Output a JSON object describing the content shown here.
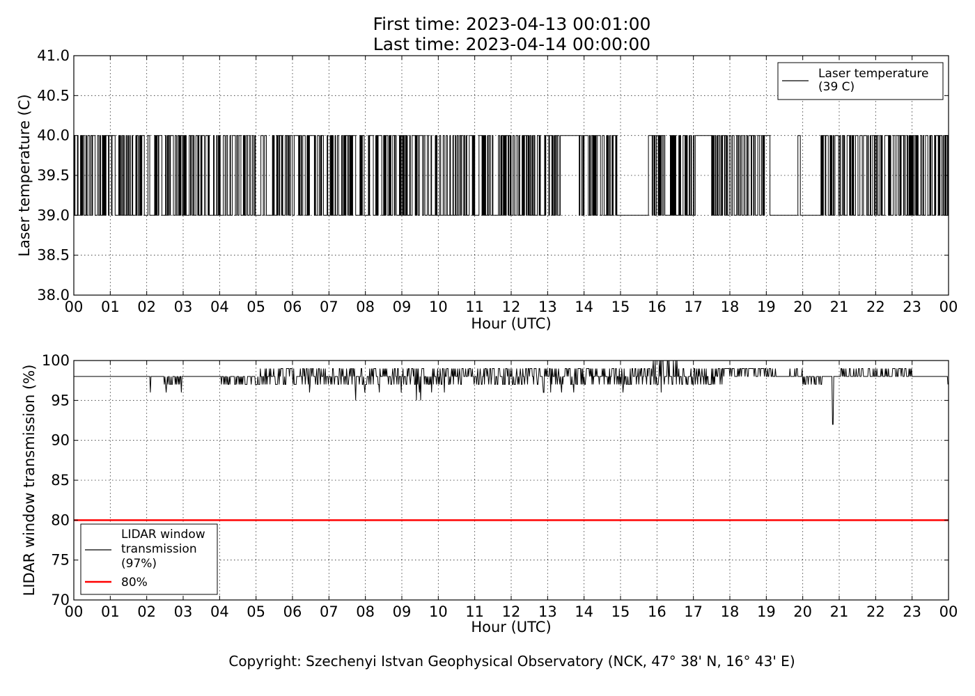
{
  "figure": {
    "title_line1": "First time: 2023-04-13 00:01:00",
    "title_line2": "Last time: 2023-04-14 00:00:00",
    "copyright": "Copyright: Szechenyi Istvan Geophysical Observatory (NCK, 47° 38' N, 16° 43' E)"
  },
  "chart_data": [
    {
      "type": "line",
      "xlabel": "Hour (UTC)",
      "ylabel": "Laser temperature (C)",
      "xlim": [
        0,
        24
      ],
      "ylim": [
        38.0,
        41.0
      ],
      "x_tick_labels": [
        "00",
        "01",
        "02",
        "03",
        "04",
        "05",
        "06",
        "07",
        "08",
        "09",
        "10",
        "11",
        "12",
        "13",
        "14",
        "15",
        "16",
        "17",
        "18",
        "19",
        "20",
        "21",
        "22",
        "23",
        "00"
      ],
      "y_tick_labels": [
        "38.0",
        "38.5",
        "39.0",
        "39.5",
        "40.0",
        "40.5",
        "41.0"
      ],
      "grid": true,
      "legend_position": "top-right",
      "legend": [
        {
          "label_line1": "Laser temperature",
          "label_line2": "(39 C)",
          "color": "#000000"
        }
      ],
      "series": [
        {
          "name": "Laser temperature (39 C)",
          "color": "#000000",
          "sampling_minutes": 1,
          "values_description": "one-minute samples alternating between 39.0 and 40.0",
          "runs": [
            {
              "start_h": 0.0,
              "end_h": 13.0,
              "pattern": "alternating",
              "low": 39.0,
              "high": 40.0,
              "density": 0.45
            },
            {
              "start_h": 13.0,
              "end_h": 13.35,
              "pattern": "alternating",
              "low": 39.0,
              "high": 40.0,
              "density": 0.55
            },
            {
              "start_h": 13.35,
              "end_h": 13.8,
              "pattern": "constant",
              "value": 40.0
            },
            {
              "start_h": 13.8,
              "end_h": 14.95,
              "pattern": "alternating",
              "low": 39.0,
              "high": 40.0,
              "density": 0.55
            },
            {
              "start_h": 14.95,
              "end_h": 15.75,
              "pattern": "constant",
              "value": 39.0
            },
            {
              "start_h": 15.75,
              "end_h": 17.1,
              "pattern": "alternating",
              "low": 39.0,
              "high": 40.0,
              "density": 0.45
            },
            {
              "start_h": 17.1,
              "end_h": 17.5,
              "pattern": "constant",
              "value": 40.0
            },
            {
              "start_h": 17.5,
              "end_h": 18.95,
              "pattern": "alternating",
              "low": 39.0,
              "high": 40.0,
              "density": 0.55
            },
            {
              "start_h": 18.95,
              "end_h": 19.1,
              "pattern": "constant",
              "value": 40.0
            },
            {
              "start_h": 19.1,
              "end_h": 19.85,
              "pattern": "constant",
              "value": 39.0
            },
            {
              "start_h": 19.85,
              "end_h": 19.95,
              "pattern": "alternating",
              "low": 39.0,
              "high": 40.0,
              "density": 0.6
            },
            {
              "start_h": 19.95,
              "end_h": 20.5,
              "pattern": "constant",
              "value": 39.0
            },
            {
              "start_h": 20.5,
              "end_h": 24.0,
              "pattern": "alternating",
              "low": 39.0,
              "high": 40.0,
              "density": 0.5
            }
          ]
        }
      ]
    },
    {
      "type": "line",
      "xlabel": "Hour (UTC)",
      "ylabel": "LIDAR window transmission (%)",
      "xlim": [
        0,
        24
      ],
      "ylim": [
        70,
        100
      ],
      "x_tick_labels": [
        "00",
        "01",
        "02",
        "03",
        "04",
        "05",
        "06",
        "07",
        "08",
        "09",
        "10",
        "11",
        "12",
        "13",
        "14",
        "15",
        "16",
        "17",
        "18",
        "19",
        "20",
        "21",
        "22",
        "23",
        "00"
      ],
      "y_tick_labels": [
        "70",
        "75",
        "80",
        "85",
        "90",
        "95",
        "100"
      ],
      "grid": true,
      "legend_position": "lower-left",
      "legend": [
        {
          "label_line1": "LIDAR window",
          "label_line2": "transmission",
          "label_line3": "(97%)",
          "color": "#000000"
        },
        {
          "label_line1": "80%",
          "color": "#ff0000"
        }
      ],
      "series": [
        {
          "name": "LIDAR window transmission (97%)",
          "color": "#000000",
          "baseline": 98,
          "segments": [
            {
              "start_h": 0.0,
              "end_h": 2.05,
              "noise": 0,
              "base": 98
            },
            {
              "start_h": 2.05,
              "end_h": 3.05,
              "noise": 1,
              "base": 98,
              "min": 96,
              "max": 98
            },
            {
              "start_h": 3.05,
              "end_h": 3.8,
              "noise": 0,
              "base": 98
            },
            {
              "start_h": 3.8,
              "end_h": 5.0,
              "noise": 1,
              "base": 98,
              "min": 97,
              "max": 98
            },
            {
              "start_h": 5.0,
              "end_h": 5.7,
              "noise": 1,
              "base": 98,
              "min": 97,
              "max": 99
            },
            {
              "start_h": 5.7,
              "end_h": 7.0,
              "noise": 1,
              "base": 98,
              "min": 96,
              "max": 99
            },
            {
              "start_h": 7.0,
              "end_h": 9.7,
              "noise": 1,
              "base": 98,
              "min": 95,
              "max": 99
            },
            {
              "start_h": 9.7,
              "end_h": 12.5,
              "noise": 1,
              "base": 98,
              "min": 95,
              "max": 99
            },
            {
              "start_h": 12.5,
              "end_h": 15.9,
              "noise": 1,
              "base": 98,
              "min": 96,
              "max": 99
            },
            {
              "start_h": 15.9,
              "end_h": 16.6,
              "noise": 1,
              "base": 98,
              "min": 96,
              "max": 100
            },
            {
              "start_h": 16.6,
              "end_h": 17.8,
              "noise": 1,
              "base": 98,
              "min": 97,
              "max": 99
            },
            {
              "start_h": 17.8,
              "end_h": 19.0,
              "noise": 1,
              "base": 99,
              "min": 98,
              "max": 99
            },
            {
              "start_h": 19.0,
              "end_h": 20.0,
              "noise": 1,
              "base": 98,
              "min": 98,
              "max": 99
            },
            {
              "start_h": 20.0,
              "end_h": 20.6,
              "noise": 1,
              "base": 98,
              "min": 97,
              "max": 98
            },
            {
              "start_h": 20.6,
              "end_h": 21.0,
              "noise": 0,
              "base": 98,
              "spike_at": 20.83,
              "spike_min": 92
            },
            {
              "start_h": 21.0,
              "end_h": 23.0,
              "noise": 1,
              "base": 98,
              "min": 98,
              "max": 99
            },
            {
              "start_h": 23.0,
              "end_h": 24.0,
              "noise": 0,
              "base": 98,
              "end_dip": 97
            }
          ]
        },
        {
          "name": "80%",
          "color": "#ff0000",
          "constant": 80
        }
      ]
    }
  ]
}
